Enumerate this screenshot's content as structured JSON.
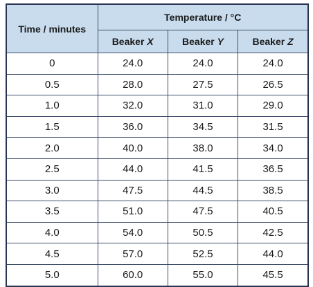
{
  "table": {
    "header": {
      "time": "Time / minutes",
      "group": "Temperature / °C",
      "columns": [
        {
          "label": "Beaker",
          "symbol": "X"
        },
        {
          "label": "Beaker",
          "symbol": "Y"
        },
        {
          "label": "Beaker",
          "symbol": "Z"
        }
      ]
    },
    "rows": [
      [
        "0",
        "24.0",
        "24.0",
        "24.0"
      ],
      [
        "0.5",
        "28.0",
        "27.5",
        "26.5"
      ],
      [
        "1.0",
        "32.0",
        "31.0",
        "29.0"
      ],
      [
        "1.5",
        "36.0",
        "34.5",
        "31.5"
      ],
      [
        "2.0",
        "40.0",
        "38.0",
        "34.0"
      ],
      [
        "2.5",
        "44.0",
        "41.5",
        "36.5"
      ],
      [
        "3.0",
        "47.5",
        "44.5",
        "38.5"
      ],
      [
        "3.5",
        "51.0",
        "47.5",
        "40.5"
      ],
      [
        "4.0",
        "54.0",
        "50.5",
        "42.5"
      ],
      [
        "4.5",
        "57.0",
        "52.5",
        "44.0"
      ],
      [
        "5.0",
        "60.0",
        "55.0",
        "45.5"
      ]
    ]
  }
}
